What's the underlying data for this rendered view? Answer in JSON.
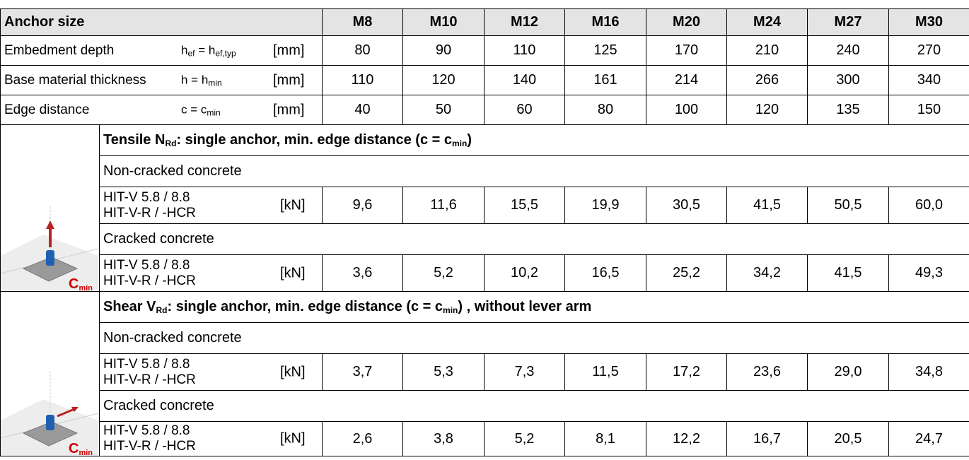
{
  "header": {
    "label": "Anchor size",
    "sizes": [
      "M8",
      "M10",
      "M12",
      "M16",
      "M20",
      "M24",
      "M27",
      "M30"
    ]
  },
  "rows": [
    {
      "label": "Embedment depth",
      "symbol": [
        "h",
        "ef",
        " = h",
        "ef,typ"
      ],
      "unit": "[mm]",
      "values": [
        "80",
        "90",
        "110",
        "125",
        "170",
        "210",
        "240",
        "270"
      ]
    },
    {
      "label": "Base material thickness",
      "symbol": [
        "h = h",
        "min"
      ],
      "unit": "[mm]",
      "values": [
        "110",
        "120",
        "140",
        "161",
        "214",
        "266",
        "300",
        "340"
      ]
    },
    {
      "label": "Edge distance",
      "symbol": [
        "c = c",
        "min"
      ],
      "unit": "[mm]",
      "values": [
        "40",
        "50",
        "60",
        "80",
        "100",
        "120",
        "135",
        "150"
      ]
    }
  ],
  "sections": [
    {
      "title": [
        "Tensile N",
        "Rd",
        ": single anchor, min. edge distance (c = c",
        "min",
        ")"
      ],
      "icon_label": [
        "C",
        "min"
      ],
      "groups": [
        {
          "condition": "Non-cracked concrete",
          "products": [
            "HIT-V 5.8 / 8.8",
            "HIT-V-R / -HCR"
          ],
          "unit": "[kN]",
          "values": [
            "9,6",
            "11,6",
            "15,5",
            "19,9",
            "30,5",
            "41,5",
            "50,5",
            "60,0"
          ]
        },
        {
          "condition": "Cracked concrete",
          "products": [
            "HIT-V 5.8 / 8.8",
            "HIT-V-R / -HCR"
          ],
          "unit": "[kN]",
          "values": [
            "3,6",
            "5,2",
            "10,2",
            "16,5",
            "25,2",
            "34,2",
            "41,5",
            "49,3"
          ]
        }
      ]
    },
    {
      "title": [
        "Shear V",
        "Rd",
        ": single anchor, min. edge distance (c = c",
        "min",
        ") , without lever arm"
      ],
      "icon_label": [
        "C",
        "min"
      ],
      "groups": [
        {
          "condition": "Non-cracked concrete",
          "products": [
            "HIT-V 5.8 / 8.8",
            "HIT-V-R / -HCR"
          ],
          "unit": "[kN]",
          "values": [
            "3,7",
            "5,3",
            "7,3",
            "11,5",
            "17,2",
            "23,6",
            "29,0",
            "34,8"
          ]
        },
        {
          "condition": "Cracked concrete",
          "products": [
            "HIT-V 5.8 / 8.8",
            "HIT-V-R / -HCR"
          ],
          "unit": "[kN]",
          "values": [
            "2,6",
            "3,8",
            "5,2",
            "8,1",
            "12,2",
            "16,7",
            "20,5",
            "24,7"
          ]
        }
      ]
    }
  ]
}
